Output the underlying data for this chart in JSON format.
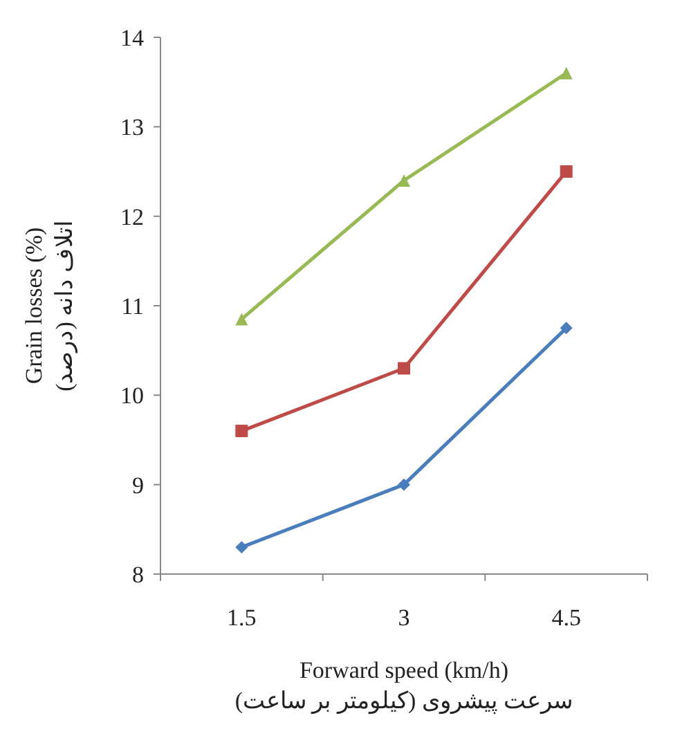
{
  "chart_data": {
    "type": "line",
    "xlabel": "Forward speed (km/h)\nسرعت پیشروی (کیلومتر بر ساعت)",
    "ylabel": "Grain losses (%)\n(درصد) اتلاف دانه",
    "categories": [
      "1.5",
      "3",
      "4.5"
    ],
    "series": [
      {
        "color": "#4a7ebb",
        "marker": "diamond",
        "values": [
          8.3,
          9.0,
          10.75
        ]
      },
      {
        "color": "#be4b48",
        "marker": "square",
        "values": [
          9.6,
          10.3,
          12.5
        ]
      },
      {
        "color": "#98b954",
        "marker": "triangle",
        "values": [
          10.85,
          12.4,
          13.6
        ]
      }
    ],
    "ylim": [
      8,
      14
    ],
    "yticks": [
      8,
      9,
      10,
      11,
      12,
      13,
      14
    ],
    "grid": false,
    "line_style": "solid"
  }
}
